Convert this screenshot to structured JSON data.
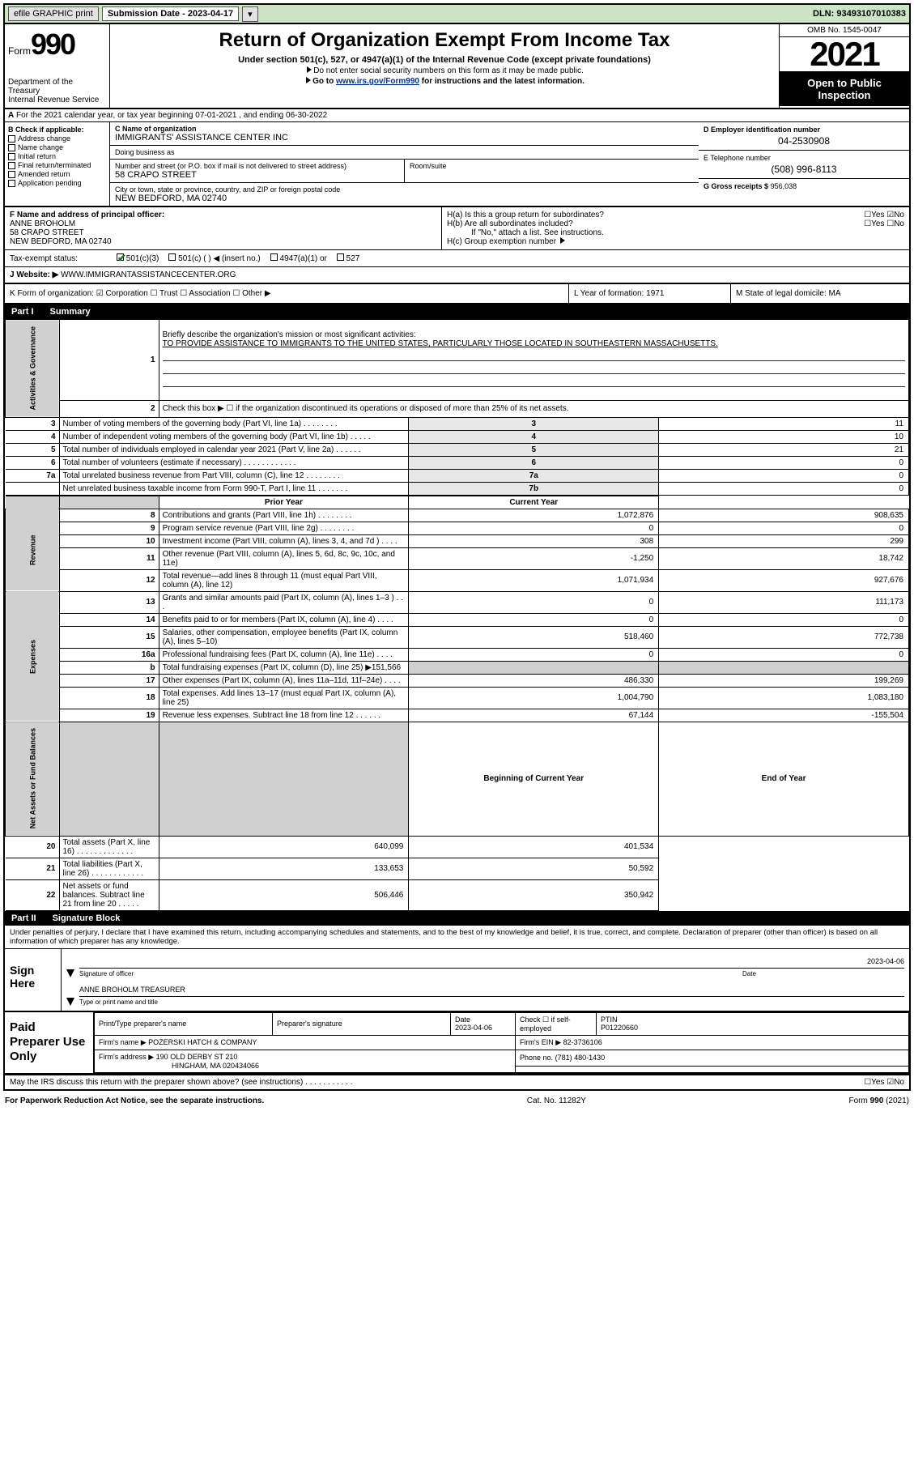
{
  "topbar": {
    "efile": "efile GRAPHIC print",
    "subdate_label": "Submission Date - 2023-04-17",
    "dln": "DLN: 93493107010383"
  },
  "header": {
    "form_label": "Form",
    "form_num": "990",
    "dept": "Department of the Treasury",
    "irs": "Internal Revenue Service",
    "title": "Return of Organization Exempt From Income Tax",
    "sub": "Under section 501(c), 527, or 4947(a)(1) of the Internal Revenue Code (except private foundations)",
    "note1": "Do not enter social security numbers on this form as it may be made public.",
    "note2_pre": "Go to ",
    "note2_link": "www.irs.gov/Form990",
    "note2_post": " for instructions and the latest information.",
    "omb": "OMB No. 1545-0047",
    "year": "2021",
    "inspect": "Open to Public Inspection"
  },
  "row_a": "For the 2021 calendar year, or tax year beginning 07-01-2021    , and ending 06-30-2022",
  "section_b": {
    "label": "B Check if applicable:",
    "opts": [
      "Address change",
      "Name change",
      "Initial return",
      "Final return/terminated",
      "Amended return",
      "Application pending"
    ],
    "c_label": "C Name of organization",
    "org": "IMMIGRANTS' ASSISTANCE CENTER INC",
    "dba_label": "Doing business as",
    "addr_label": "Number and street (or P.O. box if mail is not delivered to street address)",
    "room_label": "Room/suite",
    "street": "58 CRAPO STREET",
    "city_label": "City or town, state or province, country, and ZIP or foreign postal code",
    "city": "NEW BEDFORD, MA  02740",
    "d_label": "D Employer identification number",
    "ein": "04-2530908",
    "e_label": "E Telephone number",
    "phone": "(508) 996-8113",
    "g_label": "G Gross receipts $",
    "gross": "956,038"
  },
  "fgh": {
    "f_label": "F  Name and address of principal officer:",
    "officer_name": "ANNE BROHOLM",
    "officer_addr1": "58 CRAPO STREET",
    "officer_addr2": "NEW BEDFORD, MA  02740",
    "ha": "H(a)  Is this a group return for subordinates?",
    "hb": "H(b)  Are all subordinates included?",
    "hb_note": "If \"No,\" attach a list. See instructions.",
    "hc": "H(c)  Group exemption number"
  },
  "tax": {
    "label": "Tax-exempt status:",
    "opt1": "501(c)(3)",
    "opt2": "501(c) (   ) ◀ (insert no.)",
    "opt3": "4947(a)(1) or",
    "opt4": "527"
  },
  "row_j": {
    "label": "J   Website: ▶",
    "val": "WWW.IMMIGRANTASSISTANCECENTER.ORG"
  },
  "row_k": {
    "k1": "K Form of organization:    ☑ Corporation  ☐ Trust  ☐ Association  ☐ Other ▶",
    "k2": "L Year of formation: 1971",
    "k3": "M State of legal domicile: MA"
  },
  "parts": {
    "p1": "Part I",
    "p1t": "Summary",
    "p2": "Part II",
    "p2t": "Signature Block"
  },
  "summary": {
    "mission_label": "Briefly describe the organization's mission or most significant activities:",
    "mission": "TO PROVIDE ASSISTANCE TO IMMIGRANTS TO THE UNITED STATES, PARTICULARLY THOSE LOCATED IN SOUTHEASTERN MASSACHUSETTS.",
    "line2": "Check this box ▶ ☐  if the organization discontinued its operations or disposed of more than 25% of its net assets.",
    "rows_gov": [
      {
        "n": "3",
        "d": "Number of voting members of the governing body (Part VI, line 1a)   .    .    .    .    .    .    .    .",
        "k": "3",
        "v": "11"
      },
      {
        "n": "4",
        "d": "Number of independent voting members of the governing body (Part VI, line 1b)   .    .    .    .    .",
        "k": "4",
        "v": "10"
      },
      {
        "n": "5",
        "d": "Total number of individuals employed in calendar year 2021 (Part V, line 2a)   .    .    .    .    .    .",
        "k": "5",
        "v": "21"
      },
      {
        "n": "6",
        "d": "Total number of volunteers (estimate if necessary)   .    .    .    .    .    .    .    .    .    .    .    .",
        "k": "6",
        "v": "0"
      },
      {
        "n": "7a",
        "d": "Total unrelated business revenue from Part VIII, column (C), line 12   .    .    .    .    .    .    .    .",
        "k": "7a",
        "v": "0"
      },
      {
        "n": "",
        "d": "Net unrelated business taxable income from Form 990-T, Part I, line 11   .    .    .    .    .    .    .",
        "k": "7b",
        "v": "0"
      }
    ],
    "col_py": "Prior Year",
    "col_cy": "Current Year",
    "rows_rev": [
      {
        "n": "8",
        "d": "Contributions and grants (Part VIII, line 1h)   .    .    .    .    .    .    .    .",
        "py": "1,072,876",
        "cy": "908,635"
      },
      {
        "n": "9",
        "d": "Program service revenue (Part VIII, line 2g)   .    .    .    .    .    .    .    .",
        "py": "0",
        "cy": "0"
      },
      {
        "n": "10",
        "d": "Investment income (Part VIII, column (A), lines 3, 4, and 7d )   .    .    .    .",
        "py": "308",
        "cy": "299"
      },
      {
        "n": "11",
        "d": "Other revenue (Part VIII, column (A), lines 5, 6d, 8c, 9c, 10c, and 11e)",
        "py": "-1,250",
        "cy": "18,742"
      },
      {
        "n": "12",
        "d": "Total revenue—add lines 8 through 11 (must equal Part VIII, column (A), line 12)",
        "py": "1,071,934",
        "cy": "927,676"
      }
    ],
    "rows_exp": [
      {
        "n": "13",
        "d": "Grants and similar amounts paid (Part IX, column (A), lines 1–3 )   .    .    .",
        "py": "0",
        "cy": "111,173"
      },
      {
        "n": "14",
        "d": "Benefits paid to or for members (Part IX, column (A), line 4)   .    .    .    .",
        "py": "0",
        "cy": "0"
      },
      {
        "n": "15",
        "d": "Salaries, other compensation, employee benefits (Part IX, column (A), lines 5–10)",
        "py": "518,460",
        "cy": "772,738"
      },
      {
        "n": "16a",
        "d": "Professional fundraising fees (Part IX, column (A), line 11e)   .    .    .    .",
        "py": "0",
        "cy": "0"
      },
      {
        "n": "b",
        "d": "Total fundraising expenses (Part IX, column (D), line 25) ▶151,566",
        "py": "",
        "cy": "",
        "shade": true
      },
      {
        "n": "17",
        "d": "Other expenses (Part IX, column (A), lines 11a–11d, 11f–24e)   .    .    .    .",
        "py": "486,330",
        "cy": "199,269"
      },
      {
        "n": "18",
        "d": "Total expenses. Add lines 13–17 (must equal Part IX, column (A), line 25)",
        "py": "1,004,790",
        "cy": "1,083,180"
      },
      {
        "n": "19",
        "d": "Revenue less expenses. Subtract line 18 from line 12   .    .    .    .    .    .",
        "py": "67,144",
        "cy": "-155,504"
      }
    ],
    "col_boy": "Beginning of Current Year",
    "col_eoy": "End of Year",
    "rows_net": [
      {
        "n": "20",
        "d": "Total assets (Part X, line 16)   .    .    .    .    .    .    .    .    .    .    .    .    .",
        "py": "640,099",
        "cy": "401,534"
      },
      {
        "n": "21",
        "d": "Total liabilities (Part X, line 26)   .    .    .    .    .    .    .    .    .    .    .    .",
        "py": "133,653",
        "cy": "50,592"
      },
      {
        "n": "22",
        "d": "Net assets or fund balances. Subtract line 21 from line 20   .    .    .    .    .",
        "py": "506,446",
        "cy": "350,942"
      }
    ],
    "side_labels": {
      "gov": "Activities & Governance",
      "rev": "Revenue",
      "exp": "Expenses",
      "net": "Net Assets or Fund Balances"
    }
  },
  "penalty": "Under penalties of perjury, I declare that I have examined this return, including accompanying schedules and statements, and to the best of my knowledge and belief, it is true, correct, and complete. Declaration of preparer (other than officer) is based on all information of which preparer has any knowledge.",
  "sign": {
    "here": "Sign Here",
    "sig_of_officer": "Signature of officer",
    "date_lbl": "Date",
    "date": "2023-04-06",
    "name_title": "ANNE BROHOLM  TREASURER",
    "name_title_lbl": "Type or print name and title"
  },
  "preparer": {
    "label": "Paid Preparer Use Only",
    "h_name": "Print/Type preparer's name",
    "h_sig": "Preparer's signature",
    "h_date": "Date",
    "date": "2023-04-06",
    "h_check": "Check ☐ if self-employed",
    "h_ptin": "PTIN",
    "ptin": "P01220660",
    "firm_name_lbl": "Firm's name     ▶",
    "firm_name": "POZERSKI HATCH & COMPANY",
    "firm_ein_lbl": "Firm's EIN ▶",
    "firm_ein": "82-3736106",
    "firm_addr_lbl": "Firm's address ▶",
    "firm_addr1": "190 OLD DERBY ST 210",
    "firm_addr2": "HINGHAM, MA  020434066",
    "phone_lbl": "Phone no.",
    "phone": "(781) 480-1430"
  },
  "may_discuss": "May the IRS discuss this return with the preparer shown above? (see instructions)   .    .    .    .    .    .    .    .    .    .    .",
  "footer": {
    "pra": "For Paperwork Reduction Act Notice, see the separate instructions.",
    "cat": "Cat. No. 11282Y",
    "form": "Form 990 (2021)"
  },
  "colors": {
    "green_bg": "#cde4c6",
    "check_green": "#0a7a2a",
    "link": "#003399",
    "shade": "#d0d0d0"
  }
}
